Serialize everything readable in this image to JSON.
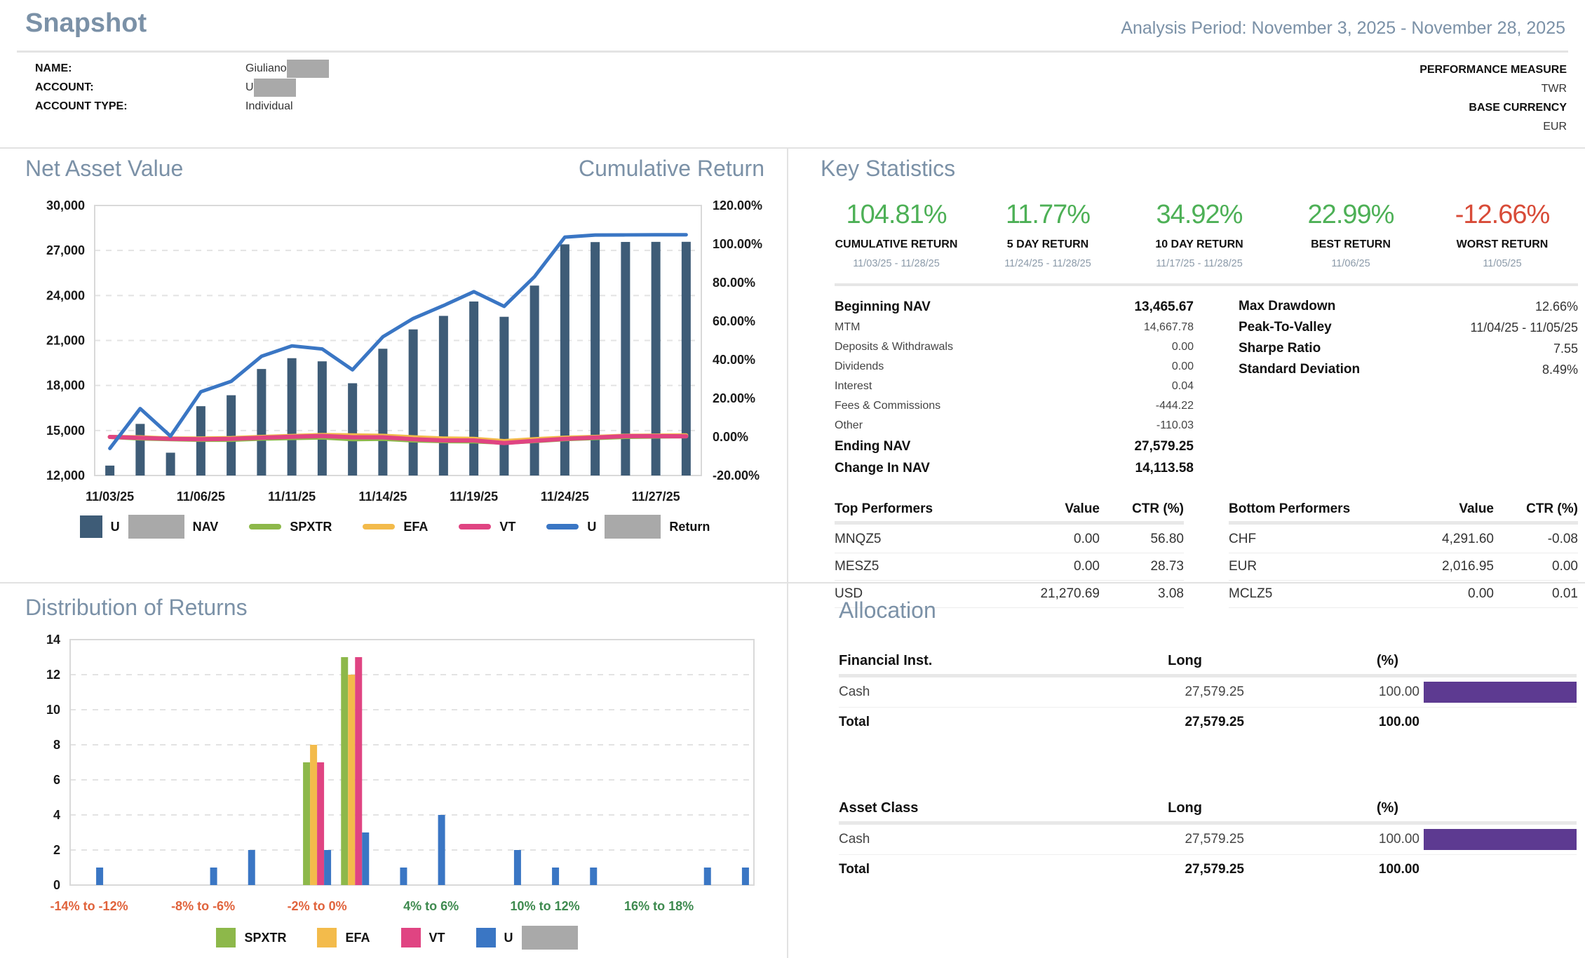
{
  "header": {
    "title": "Snapshot",
    "analysis_period": "Analysis Period: November 3, 2025 - November 28, 2025"
  },
  "account_info": {
    "rows": [
      {
        "label": "NAME:",
        "value": "Giuliano",
        "redacted": true
      },
      {
        "label": "ACCOUNT:",
        "value": "U",
        "redacted": true
      },
      {
        "label": "ACCOUNT TYPE:",
        "value": "Individual",
        "redacted": false
      }
    ],
    "right": [
      {
        "label": "PERFORMANCE MEASURE",
        "value": "TWR"
      },
      {
        "label": "BASE CURRENCY",
        "value": "EUR"
      }
    ]
  },
  "colors": {
    "heading": "#7b91a7",
    "nav_bar": "#3e5c77",
    "spxtr": "#8db84a",
    "efa": "#f3bb4b",
    "vt": "#e04482",
    "account_blue": "#3a76c4",
    "positive_green": "#4db056",
    "negative_red": "#d84b38",
    "allocation_purple": "#5d3a91",
    "redaction_gray": "#a9a9a9",
    "tick_negative": "#e0633c",
    "tick_positive": "#3e8a4f"
  },
  "nav_panel": {
    "title": "Net Asset Value",
    "title_right": "Cumulative Return",
    "chart_data": {
      "type": "combo-bar-line",
      "x": [
        "11/03/25",
        "11/04/25",
        "11/05/25",
        "11/06/25",
        "11/07/25",
        "11/10/25",
        "11/11/25",
        "11/12/25",
        "11/13/25",
        "11/14/25",
        "11/17/25",
        "11/18/25",
        "11/19/25",
        "11/20/25",
        "11/21/25",
        "11/24/25",
        "11/25/25",
        "11/26/25",
        "11/27/25",
        "11/28/25"
      ],
      "x_tick_indices": [
        0,
        3,
        6,
        9,
        12,
        15,
        18
      ],
      "x_tick_labels": [
        "11/03/25",
        "11/06/25",
        "11/11/25",
        "11/14/25",
        "11/19/25",
        "11/24/25",
        "11/27/25"
      ],
      "left_axis": {
        "min": 12000,
        "max": 30000,
        "ticks": [
          "30,000",
          "27,000",
          "24,000",
          "21,000",
          "18,000",
          "15,000",
          "12,000"
        ]
      },
      "right_axis": {
        "min": -20,
        "max": 120,
        "ticks": [
          "120.00%",
          "100.00%",
          "80.00%",
          "60.00%",
          "40.00%",
          "20.00%",
          "0.00%",
          "-20.00%"
        ]
      },
      "bars": {
        "name": "U NAV",
        "color": "#3e5c77",
        "values": [
          12660,
          15440,
          13520,
          16620,
          17350,
          19100,
          19820,
          19610,
          18150,
          20450,
          21740,
          22640,
          23600,
          22580,
          24660,
          27410,
          27560,
          27570,
          27575,
          27579
        ]
      },
      "lines": [
        {
          "name": "SPXTR",
          "color": "#8db84a",
          "width": 6,
          "values": [
            0,
            -0.8,
            -1.2,
            -1.5,
            -1.5,
            -0.9,
            -0.6,
            -0.3,
            -1.2,
            -1.0,
            -1.8,
            -2.2,
            -2.3,
            -3.0,
            -2.2,
            -1.2,
            -0.6,
            0.0,
            0.2,
            0.3
          ]
        },
        {
          "name": "EFA",
          "color": "#f3bb4b",
          "width": 6,
          "values": [
            0,
            -0.2,
            -0.8,
            -0.8,
            -0.6,
            0.0,
            0.5,
            1.0,
            0.8,
            0.6,
            -0.2,
            -0.8,
            -1.0,
            -2.2,
            -1.2,
            -0.4,
            0.0,
            0.6,
            0.7,
            0.8
          ]
        },
        {
          "name": "VT",
          "color": "#e04482",
          "width": 6,
          "values": [
            0,
            -0.5,
            -1.0,
            -1.2,
            -1.0,
            -0.4,
            0.1,
            0.5,
            -0.2,
            -0.2,
            -1.2,
            -1.8,
            -1.8,
            -3.2,
            -2.0,
            -1.0,
            -0.3,
            0.4,
            0.4,
            0.3
          ]
        },
        {
          "name": "U Return",
          "color": "#3a76c4",
          "width": 5,
          "values": [
            -5.98,
            14.7,
            0.4,
            23.4,
            28.8,
            41.8,
            47.2,
            45.6,
            34.8,
            51.9,
            61.4,
            68.1,
            75.3,
            67.7,
            83.1,
            103.6,
            104.7,
            104.75,
            104.8,
            104.81
          ]
        }
      ],
      "legend": [
        {
          "swatch": "bar",
          "color": "#3e5c77",
          "prefix": "U",
          "redact": true,
          "suffix": "NAV"
        },
        {
          "swatch": "line",
          "color": "#8db84a",
          "label": "SPXTR"
        },
        {
          "swatch": "line",
          "color": "#f3bb4b",
          "label": "EFA"
        },
        {
          "swatch": "line",
          "color": "#e04482",
          "label": "VT"
        },
        {
          "swatch": "line",
          "color": "#3a76c4",
          "prefix": "U",
          "redact": true,
          "suffix": "Return"
        }
      ]
    }
  },
  "key_stats": {
    "title": "Key Statistics",
    "highlights": [
      {
        "value": "104.81%",
        "label": "CUMULATIVE RETURN",
        "dates": "11/03/25 - 11/28/25",
        "color": "#4db056"
      },
      {
        "value": "11.77%",
        "label": "5 DAY RETURN",
        "dates": "11/24/25 - 11/28/25",
        "color": "#4db056"
      },
      {
        "value": "34.92%",
        "label": "10 DAY RETURN",
        "dates": "11/17/25 - 11/28/25",
        "color": "#4db056"
      },
      {
        "value": "22.99%",
        "label": "BEST RETURN",
        "dates": "11/06/25",
        "color": "#4db056"
      },
      {
        "value": "-12.66%",
        "label": "WORST RETURN",
        "dates": "11/05/25",
        "color": "#d84b38"
      }
    ],
    "ledger": [
      {
        "label": "Beginning NAV",
        "value": "13,465.67",
        "emphasis": true
      },
      {
        "label": "MTM",
        "value": "14,667.78",
        "emphasis": false
      },
      {
        "label": "Deposits & Withdrawals",
        "value": "0.00",
        "emphasis": false
      },
      {
        "label": "Dividends",
        "value": "0.00",
        "emphasis": false
      },
      {
        "label": "Interest",
        "value": "0.04",
        "emphasis": false
      },
      {
        "label": "Fees & Commissions",
        "value": "-444.22",
        "emphasis": false
      },
      {
        "label": "Other",
        "value": "-110.03",
        "emphasis": false
      },
      {
        "label": "Ending NAV",
        "value": "27,579.25",
        "emphasis": true
      },
      {
        "label": "Change In NAV",
        "value": "14,113.58",
        "emphasis": true
      }
    ],
    "risk": [
      {
        "label": "Max Drawdown",
        "value": "12.66%"
      },
      {
        "label": "Peak-To-Valley",
        "value": "11/04/25 - 11/05/25"
      },
      {
        "label": "Sharpe Ratio",
        "value": "7.55"
      },
      {
        "label": "Standard Deviation",
        "value": "8.49%"
      }
    ],
    "top_performers": {
      "headers": [
        "Top Performers",
        "Value",
        "CTR (%)"
      ],
      "rows": [
        [
          "MNQZ5",
          "0.00",
          "56.80"
        ],
        [
          "MESZ5",
          "0.00",
          "28.73"
        ],
        [
          "USD",
          "21,270.69",
          "3.08"
        ]
      ]
    },
    "bottom_performers": {
      "headers": [
        "Bottom Performers",
        "Value",
        "CTR (%)"
      ],
      "rows": [
        [
          "CHF",
          "4,291.60",
          "-0.08"
        ],
        [
          "EUR",
          "2,016.95",
          "0.00"
        ],
        [
          "MCLZ5",
          "0.00",
          "0.01"
        ]
      ]
    }
  },
  "distribution_panel": {
    "title": "Distribution of Returns",
    "chart_data": {
      "type": "bar",
      "categories": [
        "-14% to -12%",
        "-12% to -10%",
        "-10% to -8%",
        "-8% to -6%",
        "-6% to -4%",
        "-4% to -2%",
        "-2% to 0%",
        "0% to 2%",
        "2% to 4%",
        "4% to 6%",
        "6% to 8%",
        "8% to 10%",
        "10% to 12%",
        "12% to 14%",
        "14% to 16%",
        "16% to 18%",
        "18% to 20%",
        "20% to 22%"
      ],
      "x_tick_indices": [
        0,
        3,
        6,
        9,
        12,
        15
      ],
      "x_tick_colors": [
        "#e0633c",
        "#e0633c",
        "#e0633c",
        "#3e8a4f",
        "#3e8a4f",
        "#3e8a4f"
      ],
      "ylim": [
        0,
        14
      ],
      "ystep": 2,
      "series": [
        {
          "name": "SPXTR",
          "color": "#8db84a",
          "values": [
            0,
            0,
            0,
            0,
            0,
            0,
            7,
            13,
            0,
            0,
            0,
            0,
            0,
            0,
            0,
            0,
            0,
            0
          ]
        },
        {
          "name": "EFA",
          "color": "#f3bb4b",
          "values": [
            0,
            0,
            0,
            0,
            0,
            0,
            8,
            12,
            0,
            0,
            0,
            0,
            0,
            0,
            0,
            0,
            0,
            0
          ]
        },
        {
          "name": "VT",
          "color": "#e04482",
          "values": [
            0,
            0,
            0,
            0,
            0,
            0,
            7,
            13,
            0,
            0,
            0,
            0,
            0,
            0,
            0,
            0,
            0,
            0
          ]
        },
        {
          "name": "U",
          "color": "#3a76c4",
          "redacted": true,
          "values": [
            1,
            0,
            0,
            1,
            2,
            0,
            2,
            3,
            1,
            4,
            0,
            2,
            1,
            1,
            0,
            0,
            1,
            1
          ]
        }
      ],
      "legend": [
        {
          "swatch": "square",
          "color": "#8db84a",
          "label": "SPXTR"
        },
        {
          "swatch": "square",
          "color": "#f3bb4b",
          "label": "EFA"
        },
        {
          "swatch": "square",
          "color": "#e04482",
          "label": "VT"
        },
        {
          "swatch": "square",
          "color": "#3a76c4",
          "prefix": "U",
          "redact": true
        }
      ]
    }
  },
  "allocation": {
    "title": "Allocation",
    "tables": [
      {
        "headers": [
          "Financial Inst.",
          "Long",
          "(%)"
        ],
        "rows": [
          {
            "name": "Cash",
            "long": "27,579.25",
            "pct": "100.00",
            "bar": 100
          }
        ],
        "total": {
          "name": "Total",
          "long": "27,579.25",
          "pct": "100.00"
        }
      },
      {
        "headers": [
          "Asset Class",
          "Long",
          "(%)"
        ],
        "rows": [
          {
            "name": "Cash",
            "long": "27,579.25",
            "pct": "100.00",
            "bar": 100
          }
        ],
        "total": {
          "name": "Total",
          "long": "27,579.25",
          "pct": "100.00"
        }
      }
    ]
  }
}
